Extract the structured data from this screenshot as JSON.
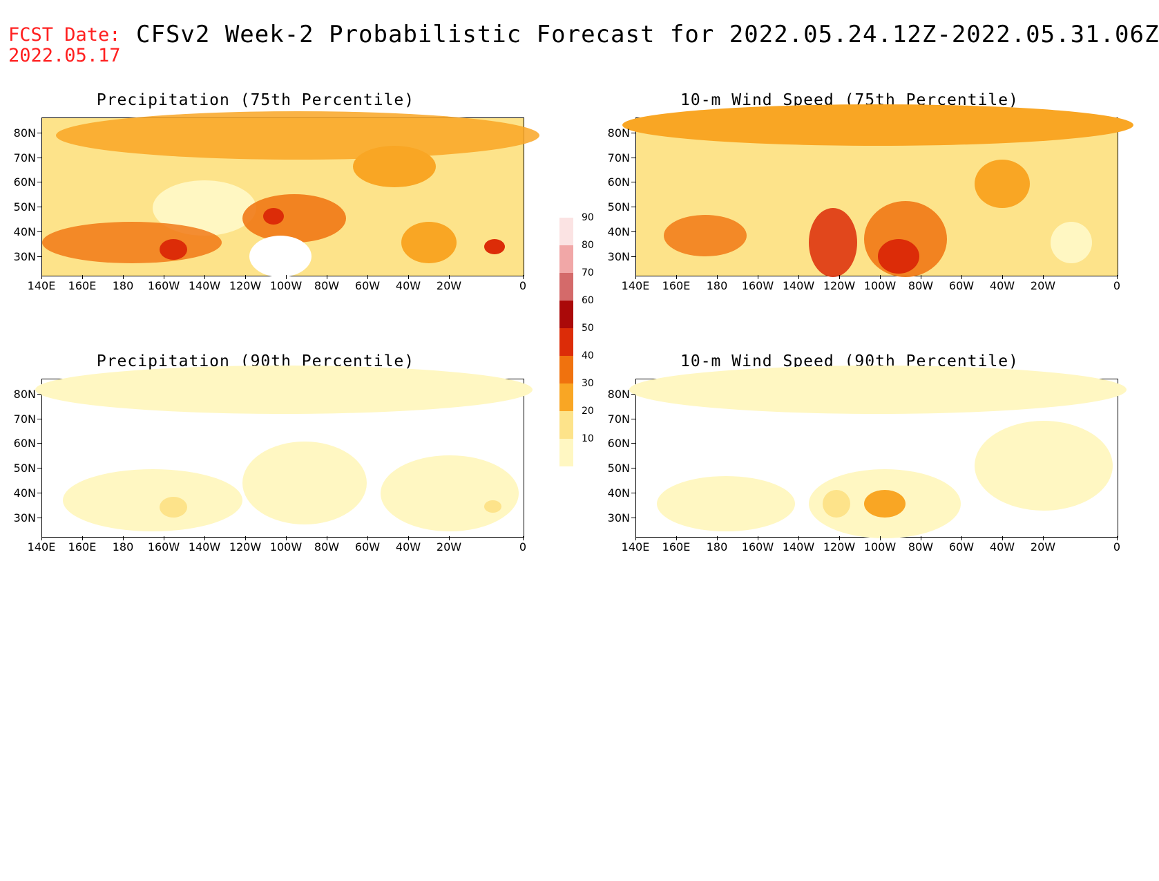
{
  "header": {
    "fcst_label": "FCST Date:",
    "fcst_date": "2022.05.17",
    "title": "CFSv2 Week-2 Probabilistic Forecast for 2022.05.24.12Z-2022.05.31.06Z"
  },
  "axes": {
    "lat_labels": [
      "80N",
      "70N",
      "60N",
      "50N",
      "40N",
      "30N"
    ],
    "lon_labels": [
      "140E",
      "160E",
      "180",
      "160W",
      "140W",
      "120W",
      "100W",
      "80W",
      "60W",
      "40W",
      "20W",
      "0"
    ]
  },
  "panels": [
    {
      "title": "Precipitation (75th Percentile)"
    },
    {
      "title": "10-m Wind Speed (75th Percentile)"
    },
    {
      "title": "Precipitation (90th Percentile)"
    },
    {
      "title": "10-m Wind Speed (90th Percentile)"
    }
  ],
  "legend": {
    "levels": [
      "10",
      "20",
      "30",
      "40",
      "50",
      "60",
      "70",
      "80",
      "90"
    ],
    "colors": [
      "#fff7c2",
      "#fde38a",
      "#f9a624",
      "#f0720e",
      "#dc2c08",
      "#aa0909",
      "#d46a6a",
      "#f1a7a7",
      "#fbe3e3"
    ]
  }
}
